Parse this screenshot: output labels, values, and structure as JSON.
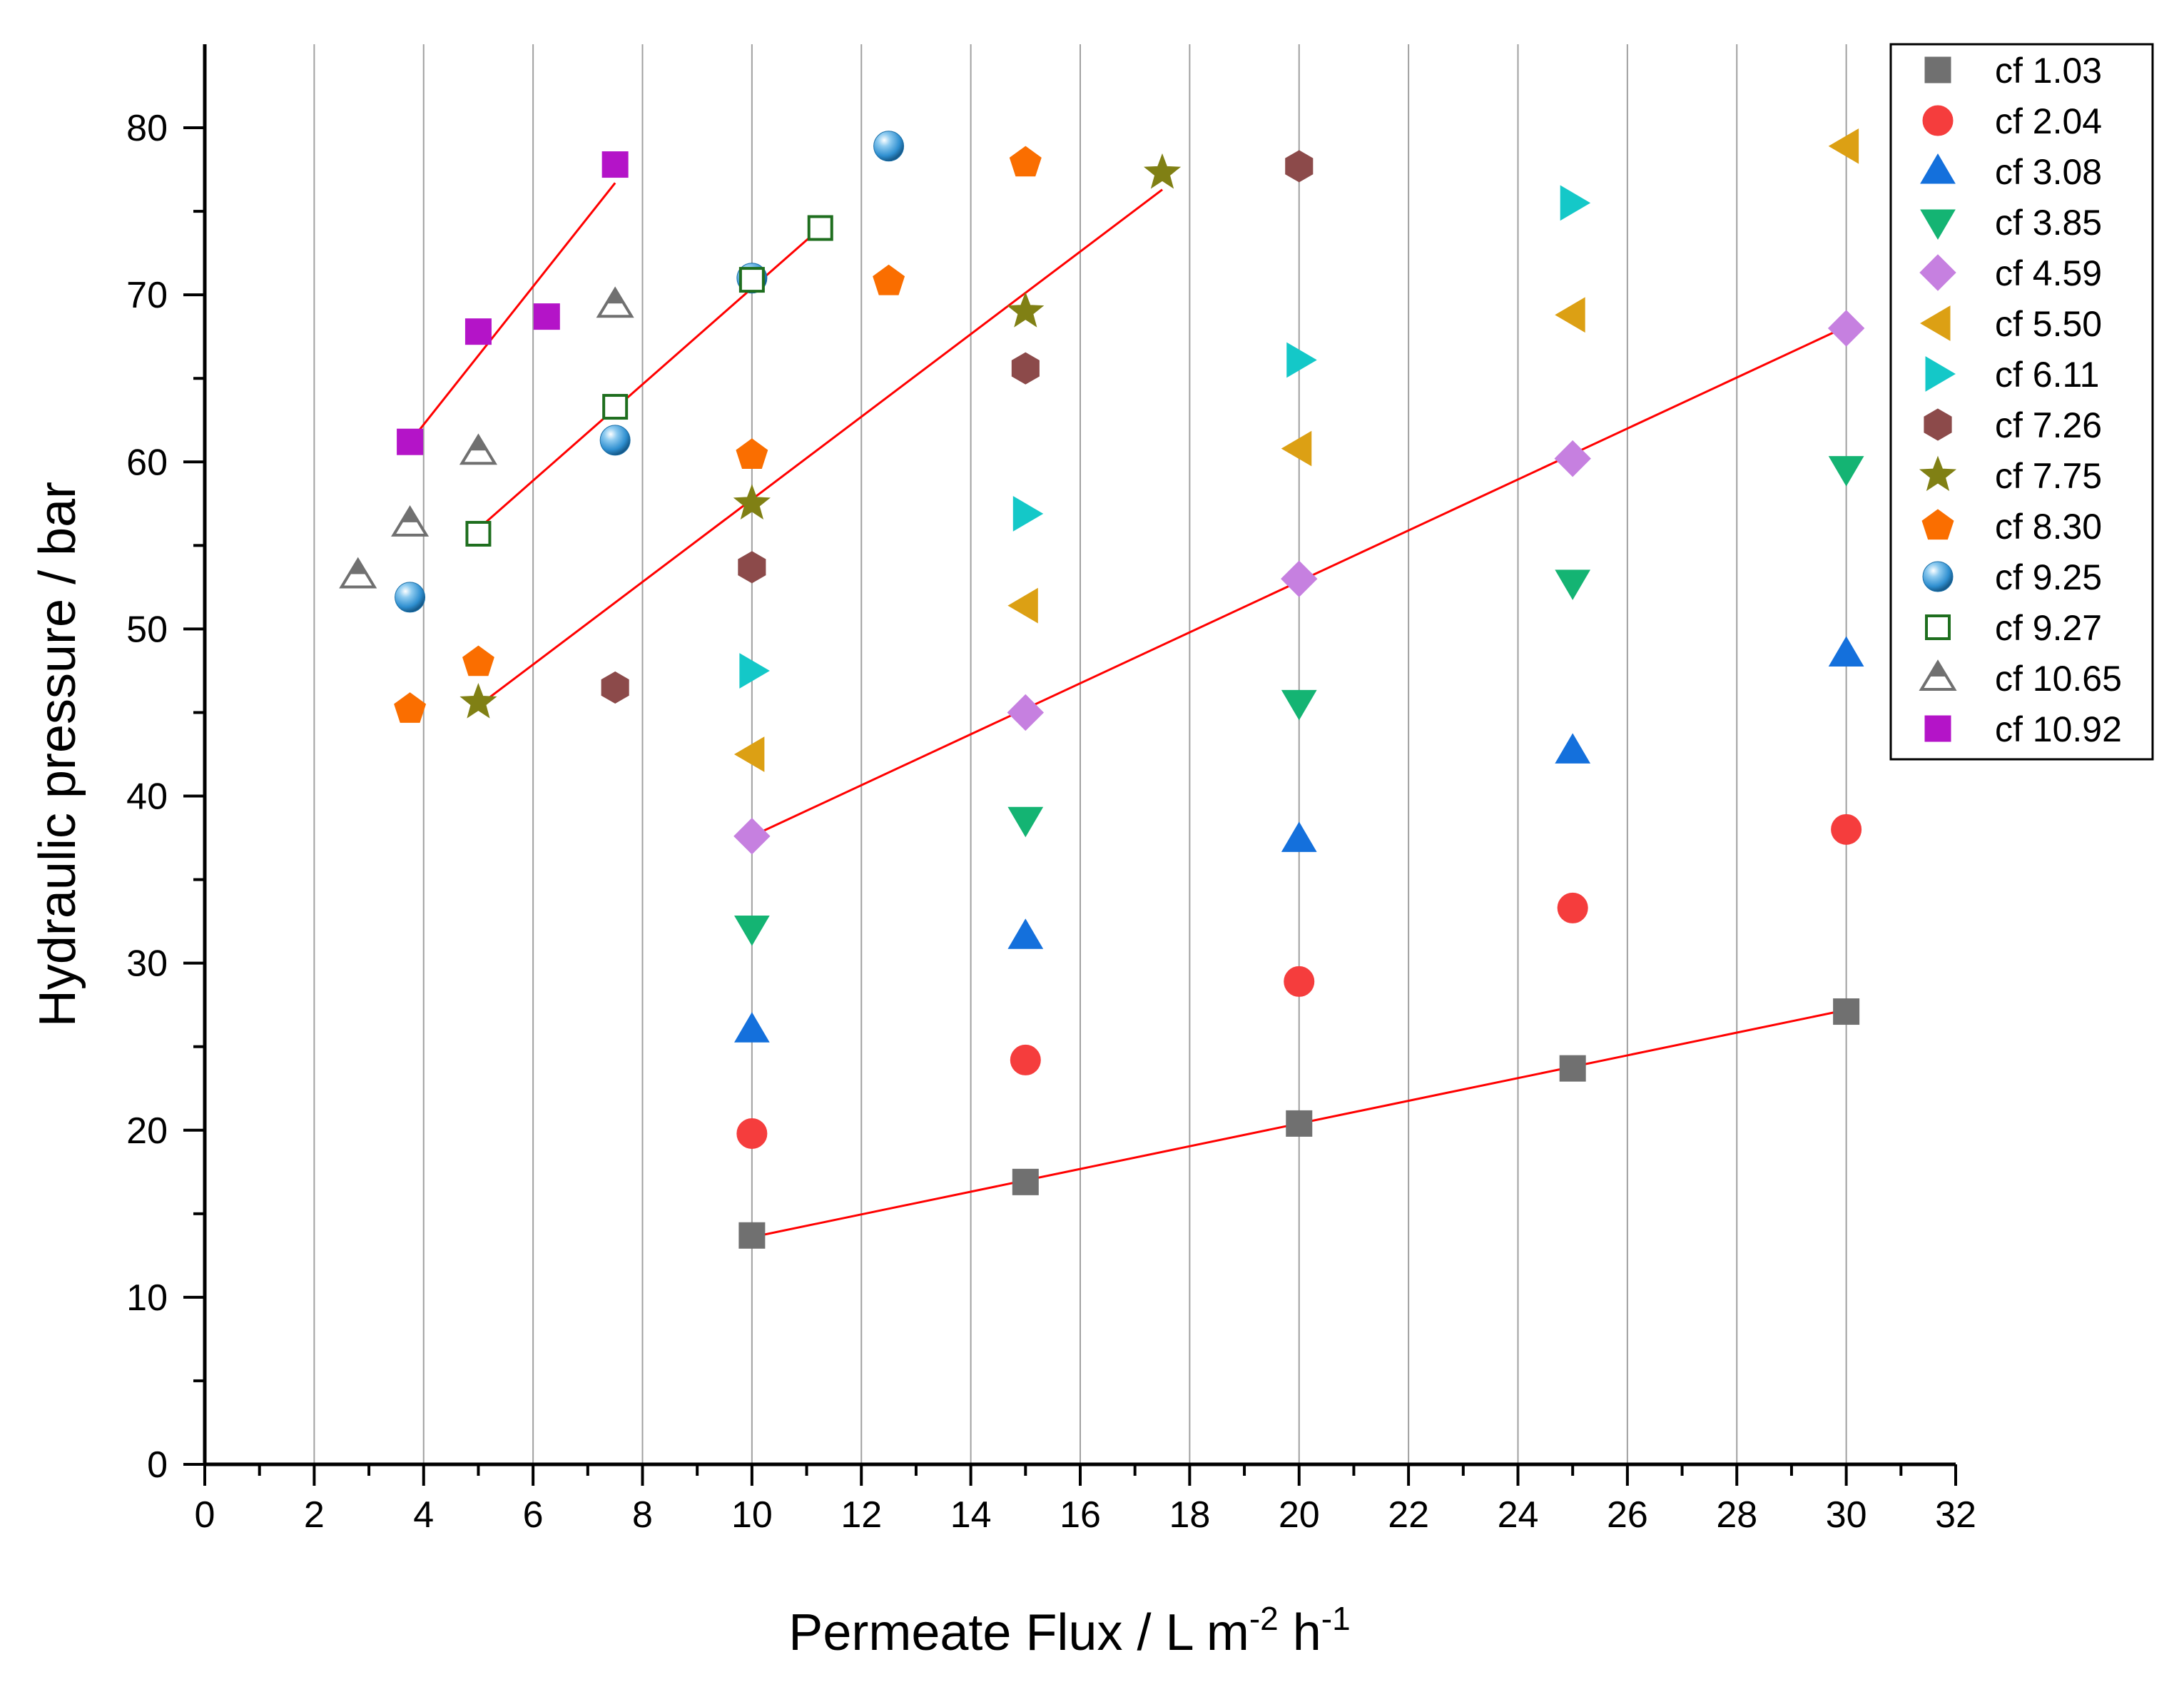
{
  "chart_data": {
    "type": "scatter",
    "title": "",
    "xlabel": {
      "main": "Permeate Flux / L m",
      "sup1": "-2",
      "mid": " h",
      "sup2": "-1"
    },
    "ylabel": "Hydraulic pressure / bar",
    "xlim": [
      0,
      32
    ],
    "ylim": [
      0,
      85
    ],
    "xticks": [
      0,
      2,
      4,
      6,
      8,
      10,
      12,
      14,
      16,
      18,
      20,
      22,
      24,
      26,
      28,
      30,
      32
    ],
    "yticks": [
      0,
      10,
      20,
      30,
      40,
      50,
      60,
      70,
      80
    ],
    "grid": "vertical",
    "legend_position": "top-right",
    "series": [
      {
        "name": "cf 1.03",
        "marker": "square",
        "color": "#707070",
        "fill": true,
        "points": [
          [
            10,
            13.7
          ],
          [
            15,
            16.9
          ],
          [
            20,
            20.4
          ],
          [
            25,
            23.7
          ],
          [
            30,
            27.1
          ]
        ]
      },
      {
        "name": "cf 2.04",
        "marker": "circle",
        "color": "#f53d3d",
        "fill": true,
        "points": [
          [
            10,
            19.8
          ],
          [
            15,
            24.2
          ],
          [
            20,
            28.9
          ],
          [
            25,
            33.3
          ],
          [
            30,
            38.0
          ]
        ]
      },
      {
        "name": "cf 3.08",
        "marker": "triangle-up",
        "color": "#1470dc",
        "fill": true,
        "points": [
          [
            10,
            26.0
          ],
          [
            15,
            31.6
          ],
          [
            20,
            37.4
          ],
          [
            25,
            42.7
          ],
          [
            30,
            48.5
          ]
        ]
      },
      {
        "name": "cf 3.85",
        "marker": "triangle-down",
        "color": "#14b473",
        "fill": true,
        "points": [
          [
            10,
            32.1
          ],
          [
            15,
            38.6
          ],
          [
            20,
            45.6
          ],
          [
            25,
            52.8
          ],
          [
            30,
            59.6
          ]
        ]
      },
      {
        "name": "cf 4.59",
        "marker": "diamond",
        "color": "#c680e0",
        "fill": true,
        "points": [
          [
            10,
            37.6
          ],
          [
            15,
            45.0
          ],
          [
            20,
            53.0
          ],
          [
            25,
            60.2
          ],
          [
            30,
            68.0
          ]
        ]
      },
      {
        "name": "cf 5.50",
        "marker": "triangle-left",
        "color": "#dca014",
        "fill": true,
        "points": [
          [
            10,
            42.5
          ],
          [
            15,
            51.4
          ],
          [
            20,
            60.8
          ],
          [
            25,
            68.8
          ],
          [
            30,
            78.9
          ]
        ]
      },
      {
        "name": "cf 6.11",
        "marker": "triangle-right",
        "color": "#14c8c8",
        "fill": true,
        "points": [
          [
            10,
            47.5
          ],
          [
            15,
            56.9
          ],
          [
            20,
            66.1
          ],
          [
            25,
            75.5
          ]
        ]
      },
      {
        "name": "cf 7.26",
        "marker": "hexagon",
        "color": "#8c4a4a",
        "fill": true,
        "points": [
          [
            7.5,
            46.5
          ],
          [
            10,
            53.7
          ],
          [
            15,
            65.6
          ],
          [
            20,
            77.7
          ]
        ]
      },
      {
        "name": "cf 7.75",
        "marker": "star",
        "color": "#808014",
        "fill": true,
        "points": [
          [
            5,
            45.6
          ],
          [
            10,
            57.5
          ],
          [
            15,
            69.0
          ],
          [
            17.5,
            77.3
          ]
        ]
      },
      {
        "name": "cf 8.30",
        "marker": "pentagon",
        "color": "#fa6e00",
        "fill": true,
        "points": [
          [
            3.75,
            45.2
          ],
          [
            5,
            48.0
          ],
          [
            10,
            60.4
          ],
          [
            12.5,
            70.8
          ],
          [
            15,
            77.9
          ]
        ]
      },
      {
        "name": "cf 9.25",
        "marker": "sphere",
        "color": "#2f8fd0",
        "fill": true,
        "points": [
          [
            3.75,
            51.9
          ],
          [
            7.5,
            61.3
          ],
          [
            10,
            71.0
          ],
          [
            12.5,
            78.9
          ]
        ]
      },
      {
        "name": "cf 9.27",
        "marker": "square-open",
        "color": "#1e6e1e",
        "fill": false,
        "points": [
          [
            5,
            55.7
          ],
          [
            7.5,
            63.3
          ],
          [
            10,
            70.9
          ],
          [
            11.25,
            74.0
          ]
        ]
      },
      {
        "name": "cf 10.65",
        "marker": "triangle-half",
        "color": "#707070",
        "fill": false,
        "points": [
          [
            2.8,
            53.2
          ],
          [
            3.75,
            56.3
          ],
          [
            5,
            60.6
          ],
          [
            7.5,
            69.4
          ]
        ]
      },
      {
        "name": "cf 10.92",
        "marker": "square",
        "color": "#b414c8",
        "fill": true,
        "points": [
          [
            3.75,
            61.2
          ],
          [
            5,
            67.8
          ],
          [
            6.25,
            68.7
          ],
          [
            7.5,
            77.8
          ]
        ]
      }
    ],
    "fit_lines": [
      {
        "series": "cf 1.03",
        "color": "#ff0000",
        "from": [
          10,
          13.6
        ],
        "to": [
          30,
          27.2
        ]
      },
      {
        "series": "cf 4.59",
        "color": "#ff0000",
        "from": [
          10,
          37.6
        ],
        "to": [
          30,
          68.1
        ]
      },
      {
        "series": "cf 7.75",
        "color": "#ff0000",
        "from": [
          5,
          45.4
        ],
        "to": [
          17.5,
          76.3
        ]
      },
      {
        "series": "cf 9.27",
        "color": "#ff0000",
        "from": [
          5,
          56.0
        ],
        "to": [
          11.25,
          74.0
        ]
      },
      {
        "series": "cf 10.92",
        "color": "#ff0000",
        "from": [
          3.75,
          61.2
        ],
        "to": [
          7.5,
          76.7
        ]
      }
    ]
  }
}
